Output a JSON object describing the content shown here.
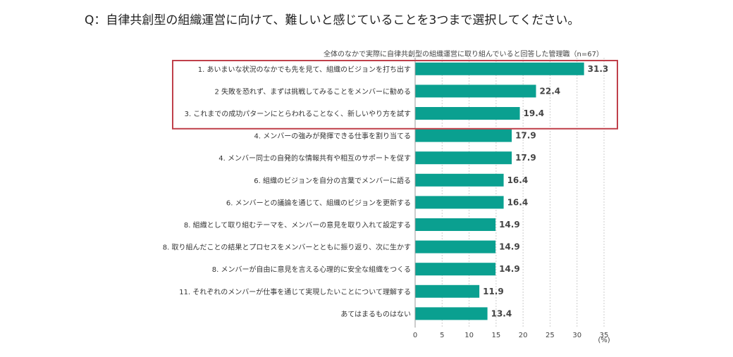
{
  "question": "Q：自律共創型の組織運営に向けて、難しいと感じていることを3つまで選択してください。",
  "chart_data": {
    "type": "bar",
    "orientation": "horizontal",
    "title": "全体のなかで実際に自律共創型の組織運営に取り組んでいると回答した管理職（n=67）",
    "categories": [
      "1. あいまいな状況のなかでも先を見て、組織のビジョンを打ち出す",
      "2 失敗を恐れず、まずは挑戦してみることをメンバーに勧める",
      "3. これまでの成功パターンにとらわれることなく、新しいやり方を試す",
      "4. メンバーの強みが発揮できる仕事を割り当てる",
      "4. メンバー同士の自発的な情報共有や相互のサポートを促す",
      "6. 組織のビジョンを自分の言葉でメンバーに語る",
      "6. メンバーとの議論を通じて、組織のビジョンを更新する",
      "8. 組織として取り組むテーマを、メンバーの意見を取り入れて設定する",
      "8. 取り組んだことの結果とプロセスをメンバーとともに振り返り、次に生かす",
      "8. メンバーが自由に意見を言える心理的に安全な組織をつくる",
      "11. それぞれのメンバーが仕事を通じて実現したいことについて理解する",
      "あてはまるものはない"
    ],
    "values": [
      31.3,
      22.4,
      19.4,
      17.9,
      17.9,
      16.4,
      16.4,
      14.9,
      14.9,
      14.9,
      11.9,
      13.4
    ],
    "value_labels": [
      "31.3",
      "22.4",
      "19.4",
      "17.9",
      "17.9",
      "16.4",
      "16.4",
      "14.9",
      "14.9",
      "14.9",
      "11.9",
      "13.4"
    ],
    "xlim": [
      0,
      35
    ],
    "xticks": [
      "0",
      "5",
      "10",
      "15",
      "20",
      "25",
      "30",
      "35"
    ],
    "x_unit": "(%)",
    "grid": "vertical-dotted",
    "highlight_box_rows": [
      0,
      2
    ],
    "colors": {
      "bar": "#0aa090",
      "highlight_border": "#c0404a",
      "grid": "#cccccc"
    }
  }
}
